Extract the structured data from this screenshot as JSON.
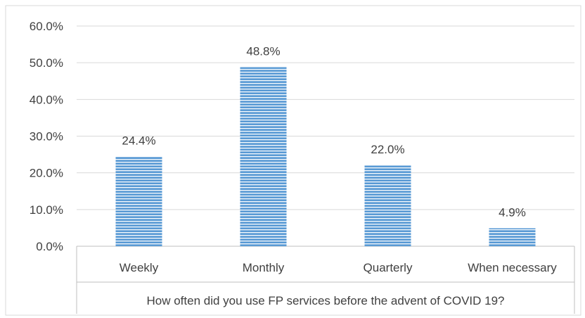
{
  "chart_data": {
    "type": "bar",
    "categories": [
      "Weekly",
      "Monthly",
      "Quarterly",
      "When necessary"
    ],
    "values": [
      24.4,
      48.8,
      22.0,
      4.9
    ],
    "data_labels": [
      "24.4%",
      "48.8%",
      "22.0%",
      "4.9%"
    ],
    "y_ticks": [
      "0.0%",
      "10.0%",
      "20.0%",
      "30.0%",
      "40.0%",
      "50.0%",
      "60.0%"
    ],
    "ylim": [
      0,
      60
    ],
    "xlabel": "How often did you use FP services before the advent of COVID 19?",
    "ylabel": "",
    "grid": true,
    "bar_color": "#5b9bd5",
    "bar_stripe_color": "#ffffff"
  }
}
